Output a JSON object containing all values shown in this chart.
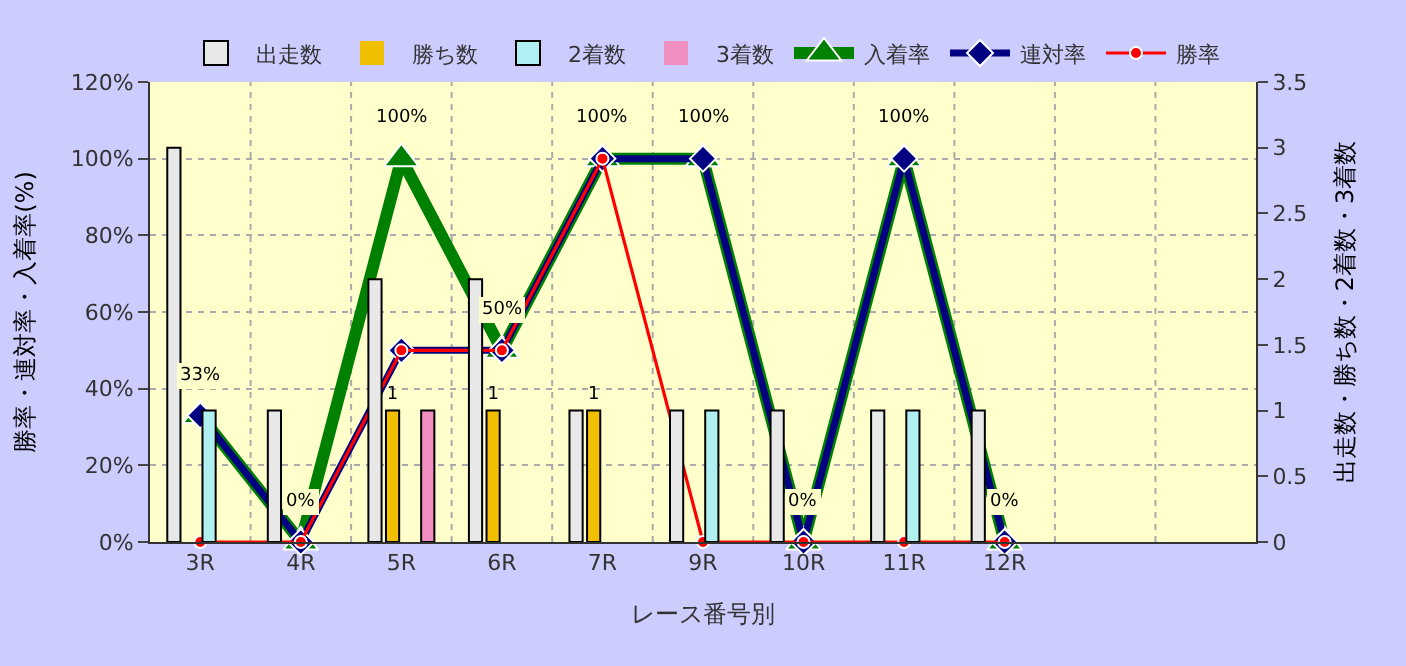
{
  "chart_data": {
    "type": "bar",
    "xlabel": "レース番号別",
    "ylabel": "勝率・連対率・入着率(%)",
    "y2label": "出走数・勝ち数・2着数・3着数",
    "categories": [
      "3R",
      "4R",
      "5R",
      "6R",
      "7R",
      "9R",
      "10R",
      "11R",
      "12R",
      null,
      null
    ],
    "series": [
      {
        "name": "出走数",
        "axis": "y2",
        "color": "#e8e8e8",
        "values": [
          3,
          1,
          2,
          2,
          1,
          1,
          1,
          1,
          1,
          null,
          null
        ]
      },
      {
        "name": "勝ち数",
        "axis": "y2",
        "color": "#f0c000",
        "values": [
          0,
          0,
          1,
          1,
          1,
          0,
          0,
          0,
          0,
          null,
          null
        ],
        "value_labels": [
          null,
          null,
          "1",
          "1",
          "1",
          null,
          null,
          null,
          null,
          null,
          null
        ]
      },
      {
        "name": "2着数",
        "axis": "y2",
        "color": "#b0f0f0",
        "values": [
          1,
          0,
          0,
          0,
          0,
          1,
          0,
          1,
          0,
          null,
          null
        ]
      },
      {
        "name": "3着数",
        "axis": "y2",
        "color": "#f090c0",
        "values": [
          0,
          0,
          1,
          0,
          0,
          0,
          0,
          0,
          0,
          null,
          null
        ]
      },
      {
        "name": "入着率",
        "type": "line",
        "color": "#008000",
        "marker": "triangle",
        "values": [
          33,
          0,
          100,
          50,
          100,
          100,
          0,
          100,
          0,
          null,
          null
        ],
        "value_labels": [
          "33%",
          "0%",
          "100%",
          "50%",
          "100%",
          "100%",
          "0%",
          "100%",
          "0%",
          null,
          null
        ]
      },
      {
        "name": "連対率",
        "type": "line",
        "color": "#000080",
        "marker": "diamond",
        "values": [
          33,
          0,
          50,
          50,
          100,
          100,
          0,
          100,
          0,
          null,
          null
        ]
      },
      {
        "name": "勝率",
        "type": "line",
        "color": "#ff0000",
        "marker": "circle",
        "values": [
          0,
          0,
          50,
          50,
          100,
          0,
          0,
          0,
          0,
          null,
          null
        ]
      }
    ],
    "ylim": [
      0,
      120
    ],
    "yticks": [
      {
        "value": 0,
        "label": "0%"
      },
      {
        "value": 20,
        "label": "20%"
      },
      {
        "value": 40,
        "label": "40%"
      },
      {
        "value": 60,
        "label": "60%"
      },
      {
        "value": 80,
        "label": "80%"
      },
      {
        "value": 100,
        "label": "100%"
      },
      {
        "value": 120,
        "label": "120%"
      }
    ],
    "y2lim": [
      0,
      3.5
    ],
    "y2ticks": [
      0,
      0.5,
      1,
      1.5,
      2,
      2.5,
      3,
      3.5
    ],
    "grid": true,
    "legend": "top"
  }
}
